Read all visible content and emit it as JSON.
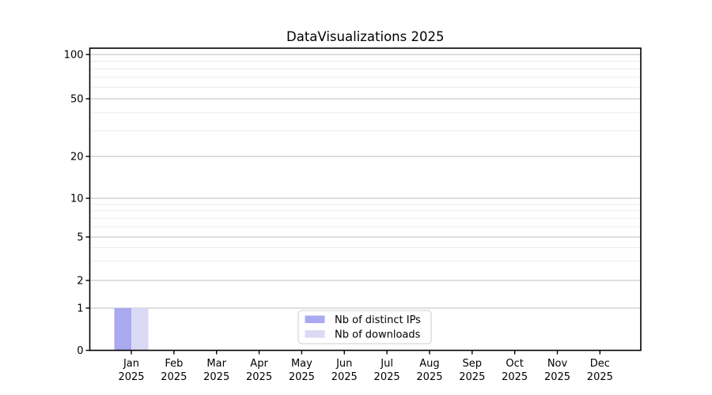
{
  "title": "DataVisualizations 2025",
  "colors": {
    "figure_background": "#ffffff",
    "axis": "#000000",
    "grid_major": "#bdbdbd",
    "grid_minor": "#e9e9e9",
    "series_distinct_ips": "#a9a9f0",
    "series_downloads": "#dadaf7",
    "legend_border": "#cccccc",
    "legend_background": "#ffffff"
  },
  "legend": {
    "items": [
      {
        "label": "Nb of distinct IPs",
        "color": "#a9a9f0"
      },
      {
        "label": "Nb of downloads",
        "color": "#dadaf7"
      }
    ]
  },
  "chart_data": {
    "type": "bar",
    "title": "DataVisualizations 2025",
    "categories": [
      {
        "month": "Jan",
        "year": "2025"
      },
      {
        "month": "Feb",
        "year": "2025"
      },
      {
        "month": "Mar",
        "year": "2025"
      },
      {
        "month": "Apr",
        "year": "2025"
      },
      {
        "month": "May",
        "year": "2025"
      },
      {
        "month": "Jun",
        "year": "2025"
      },
      {
        "month": "Jul",
        "year": "2025"
      },
      {
        "month": "Aug",
        "year": "2025"
      },
      {
        "month": "Sep",
        "year": "2025"
      },
      {
        "month": "Oct",
        "year": "2025"
      },
      {
        "month": "Nov",
        "year": "2025"
      },
      {
        "month": "Dec",
        "year": "2025"
      }
    ],
    "series": [
      {
        "name": "Nb of distinct IPs",
        "color": "#a9a9f0",
        "values": [
          1,
          0,
          0,
          0,
          0,
          0,
          0,
          0,
          0,
          0,
          0,
          0
        ]
      },
      {
        "name": "Nb of downloads",
        "color": "#dadaf7",
        "values": [
          1,
          0,
          0,
          0,
          0,
          0,
          0,
          0,
          0,
          0,
          0,
          0
        ]
      }
    ],
    "yscale": "symlog",
    "ylim": [
      0,
      110
    ],
    "y_major_ticks": [
      0,
      1,
      2,
      5,
      10,
      20,
      50,
      100
    ],
    "y_minor_gridlines": [
      3,
      4,
      6,
      7,
      8,
      9,
      30,
      40,
      60,
      70,
      80,
      90
    ],
    "xlabel": "",
    "ylabel": "",
    "grid": "both",
    "legend_position": "lower center (inside axes)"
  }
}
